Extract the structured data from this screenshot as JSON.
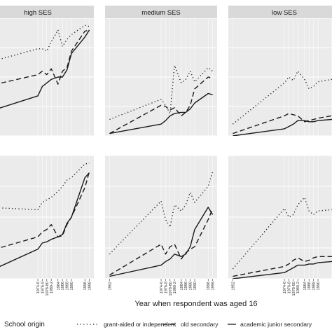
{
  "chart_data": {
    "type": "line",
    "xlabel": "Year when respondent was aged 16",
    "x_tick_labels": [
      "1952",
      "1974-6",
      "1976-8",
      "1978-80",
      "1980-2",
      "1984",
      "1986",
      "1988",
      "1990",
      "1996",
      "1998"
    ],
    "x_tick_years": [
      1952,
      1975,
      1977,
      1979,
      1981,
      1984,
      1986,
      1988,
      1990,
      1996,
      1998
    ],
    "xlim": [
      1950,
      2000
    ],
    "ylim": [
      0,
      1
    ],
    "panel_strips": [
      "high SES",
      "medium SES",
      "low SES"
    ],
    "legend": {
      "title": "School origin",
      "position": "bottom",
      "entries": [
        {
          "label": "grant-aided or independent",
          "dash": "dotted"
        },
        {
          "label": "old secondary",
          "dash": "dashed"
        },
        {
          "label": "academic junior secondary",
          "dash": "solid"
        }
      ]
    },
    "series_x": [
      1952,
      1975,
      1977,
      1979,
      1981,
      1984,
      1986,
      1988,
      1990,
      1996,
      1998
    ],
    "panels": [
      {
        "row": 0,
        "col": 0,
        "strip": "high SES",
        "series": [
          {
            "values": [
              0.62,
              0.74,
              0.74,
              0.72,
              0.8,
              0.9,
              0.76,
              0.82,
              0.86,
              0.94,
              0.93
            ]
          },
          {
            "values": [
              0.42,
              0.52,
              0.55,
              0.52,
              0.57,
              0.44,
              0.55,
              0.58,
              0.72,
              0.89,
              0.9
            ]
          },
          {
            "values": [
              0.2,
              0.34,
              0.42,
              0.45,
              0.48,
              0.5,
              0.5,
              0.56,
              0.7,
              0.84,
              0.9
            ]
          }
        ]
      },
      {
        "row": 0,
        "col": 1,
        "strip": "medium SES",
        "series": [
          {
            "values": [
              0.14,
              0.31,
              0.26,
              0.19,
              0.6,
              0.45,
              0.48,
              0.55,
              0.46,
              0.58,
              0.55
            ]
          },
          {
            "values": [
              0.02,
              0.26,
              0.25,
              0.22,
              0.24,
              0.17,
              0.2,
              0.26,
              0.4,
              0.5,
              0.49
            ]
          },
          {
            "values": [
              0.02,
              0.1,
              0.13,
              0.17,
              0.19,
              0.2,
              0.2,
              0.23,
              0.28,
              0.36,
              0.35
            ]
          }
        ]
      },
      {
        "row": 0,
        "col": 2,
        "strip": "low SES",
        "series": [
          {
            "values": [
              0.1,
              0.45,
              0.5,
              0.47,
              0.55,
              0.48,
              0.4,
              0.42,
              0.46,
              0.48,
              0.48
            ]
          },
          {
            "values": [
              0.02,
              0.17,
              0.19,
              0.18,
              0.17,
              0.12,
              0.13,
              0.14,
              0.15,
              0.17,
              0.17
            ]
          },
          {
            "values": [
              0.0,
              0.06,
              0.08,
              0.1,
              0.13,
              0.13,
              0.12,
              0.12,
              0.13,
              0.14,
              0.14
            ]
          }
        ]
      },
      {
        "row": 1,
        "col": 0,
        "strip": "",
        "series": [
          {
            "values": [
              0.58,
              0.56,
              0.62,
              0.64,
              0.66,
              0.71,
              0.75,
              0.8,
              0.82,
              0.93,
              0.94
            ]
          },
          {
            "values": [
              0.22,
              0.34,
              0.38,
              0.4,
              0.44,
              0.34,
              0.35,
              0.44,
              0.5,
              0.74,
              0.87
            ]
          },
          {
            "values": [
              0.05,
              0.24,
              0.29,
              0.3,
              0.32,
              0.34,
              0.36,
              0.45,
              0.5,
              0.82,
              0.86
            ]
          }
        ]
      },
      {
        "row": 1,
        "col": 1,
        "strip": "",
        "series": [
          {
            "values": [
              0.2,
              0.63,
              0.48,
              0.42,
              0.6,
              0.55,
              0.6,
              0.7,
              0.62,
              0.75,
              0.87
            ]
          },
          {
            "values": [
              0.03,
              0.28,
              0.2,
              0.26,
              0.28,
              0.16,
              0.21,
              0.24,
              0.26,
              0.48,
              0.57
            ]
          },
          {
            "values": [
              0.02,
              0.11,
              0.14,
              0.16,
              0.2,
              0.18,
              0.2,
              0.26,
              0.4,
              0.58,
              0.52
            ]
          }
        ]
      },
      {
        "row": 1,
        "col": 2,
        "strip": "",
        "series": [
          {
            "values": [
              0.08,
              0.57,
              0.5,
              0.52,
              0.6,
              0.66,
              0.55,
              0.52,
              0.55,
              0.56,
              0.56
            ]
          },
          {
            "values": [
              0.02,
              0.1,
              0.12,
              0.15,
              0.17,
              0.14,
              0.15,
              0.17,
              0.18,
              0.18,
              0.18
            ]
          },
          {
            "values": [
              0.0,
              0.05,
              0.07,
              0.09,
              0.11,
              0.11,
              0.12,
              0.12,
              0.13,
              0.14,
              0.14
            ]
          }
        ]
      }
    ],
    "colors": {
      "panel_bg": "#ebebeb",
      "grid": "#ffffff",
      "strip_bg": "#d9d9d9",
      "line": "#1a1a1a"
    }
  }
}
